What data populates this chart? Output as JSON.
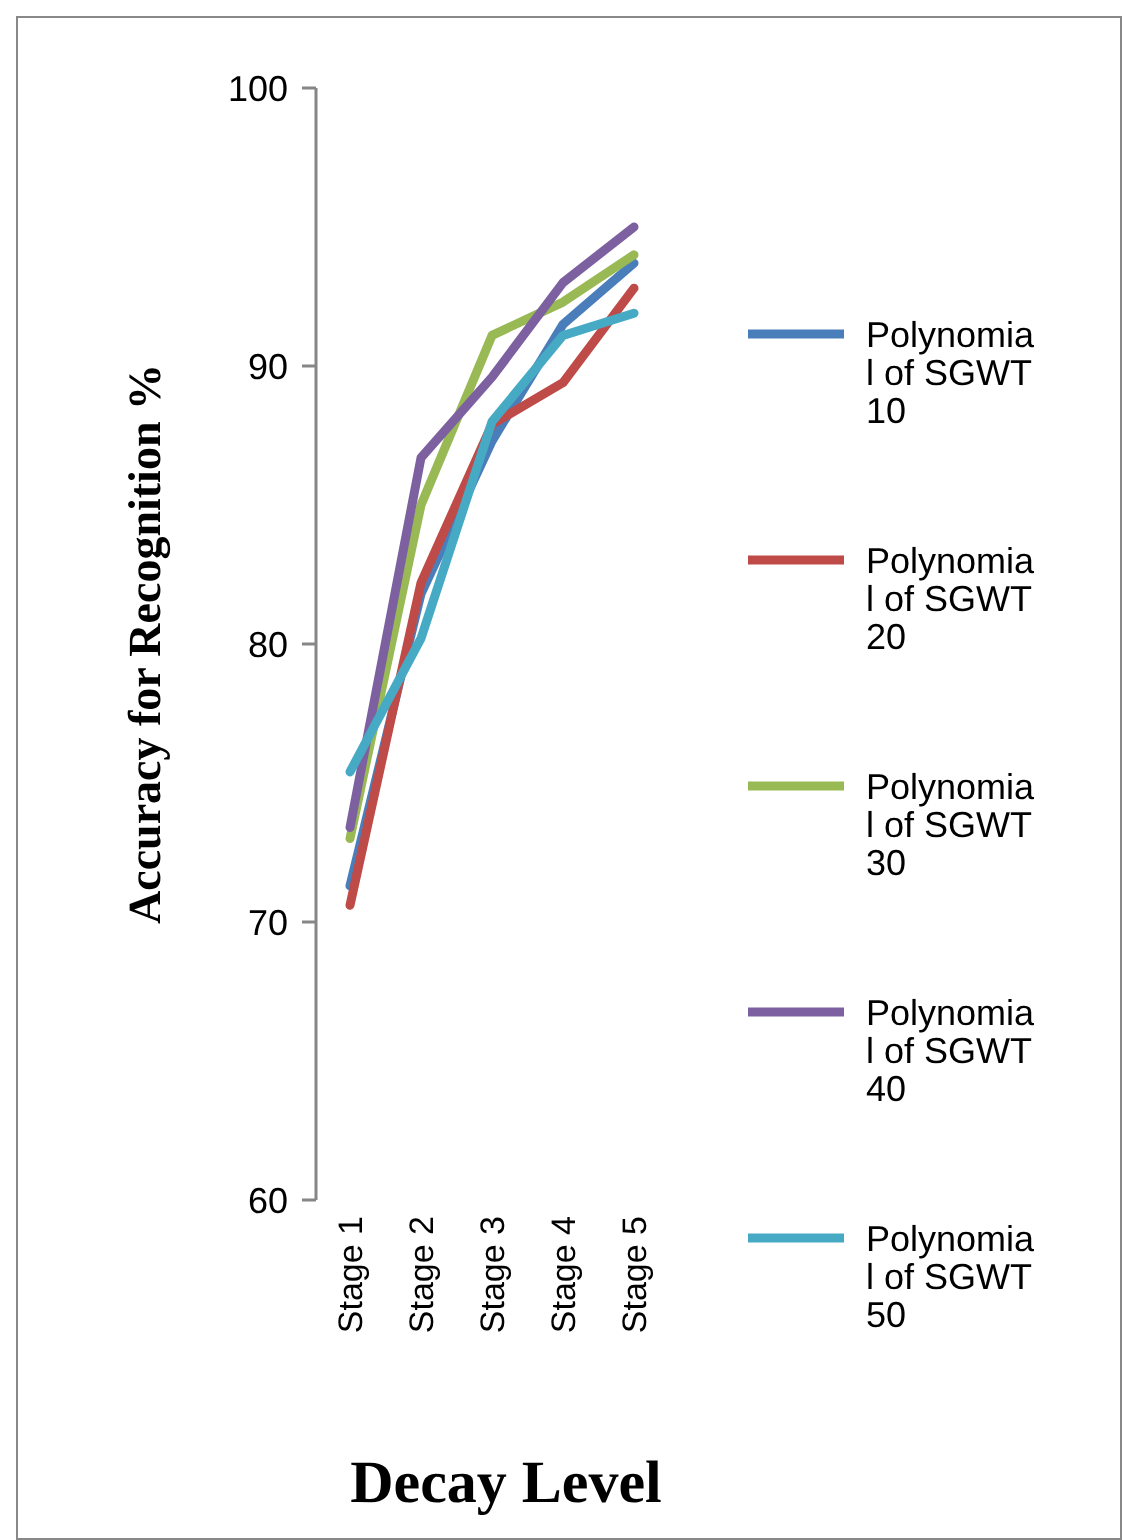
{
  "chart_data": {
    "type": "line",
    "xlabel": "Decay Level",
    "ylabel": "Accuracy for Recognition %",
    "categories": [
      "Stage 1",
      "Stage 2",
      "Stage 3",
      "Stage 4",
      "Stage 5"
    ],
    "ylim": [
      60,
      100
    ],
    "yticks": [
      60,
      70,
      80,
      90,
      100
    ],
    "grid": false,
    "legend": "right",
    "marker": "none",
    "series": [
      {
        "name": "Polynomial of SGWT 10",
        "color": "#4a7ebb",
        "values": [
          71.3,
          81.8,
          87.3,
          91.5,
          93.7
        ]
      },
      {
        "name": "Polynomial of SGWT 20",
        "color": "#be4b48",
        "values": [
          70.6,
          82.2,
          87.9,
          89.4,
          92.8
        ]
      },
      {
        "name": "Polynomial of SGWT 30",
        "color": "#98b954",
        "values": [
          73.0,
          85.0,
          91.1,
          92.3,
          94.0
        ]
      },
      {
        "name": "Polynomial of SGWT 40",
        "color": "#7d60a0",
        "values": [
          73.4,
          86.7,
          89.6,
          93.0,
          95.0
        ]
      },
      {
        "name": "Polynomial of SGWT 50",
        "color": "#46aac5",
        "values": [
          75.4,
          80.2,
          88.0,
          91.1,
          91.9
        ]
      }
    ]
  }
}
